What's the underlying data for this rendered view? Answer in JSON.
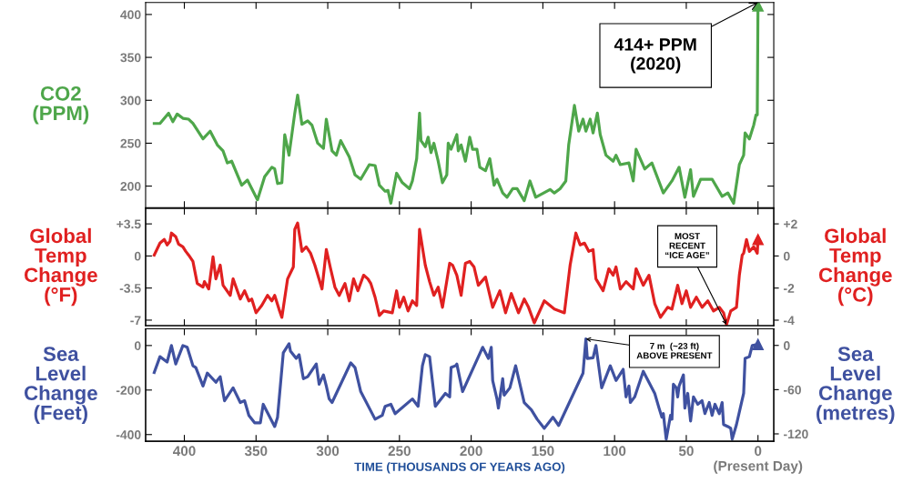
{
  "chart_data": [
    {
      "type": "line",
      "ylabel": "CO2\n(PPM)",
      "xlim": [
        427,
        -11
      ],
      "xticks": [
        400,
        350,
        300,
        250,
        200,
        150,
        100,
        50,
        0
      ],
      "ylim": [
        175,
        414
      ],
      "yticks": [
        200,
        250,
        300,
        350,
        400
      ],
      "tick_labels": "y",
      "annotations": [
        {
          "text": "414+ PPM\n(2020)",
          "x": 0,
          "y": 414
        }
      ],
      "series": [
        {
          "color": "#4ea64a",
          "x": [
            421,
            417,
            411,
            408,
            405,
            401,
            397,
            394,
            387,
            382,
            377,
            373,
            370,
            367,
            360,
            356,
            349,
            344,
            339,
            337,
            335,
            332,
            330,
            327,
            323,
            321,
            318,
            314,
            311,
            307,
            303,
            301,
            297,
            294,
            291,
            285,
            281,
            277,
            271,
            267,
            264,
            260,
            258,
            256,
            252,
            248,
            243,
            241,
            238,
            236,
            235,
            232,
            230,
            228,
            226,
            223,
            220,
            217,
            216,
            214,
            210,
            209,
            207,
            204,
            201,
            199,
            196,
            194,
            190,
            187,
            184,
            182,
            178,
            175,
            171,
            168,
            163,
            159,
            155,
            145,
            142,
            138,
            134,
            132,
            128,
            125,
            122,
            120,
            117,
            115,
            112,
            110,
            106,
            101,
            99,
            96,
            90,
            87,
            85,
            79,
            74,
            66,
            60,
            55,
            51,
            47,
            45,
            40,
            32,
            25,
            21,
            17,
            13,
            10,
            9,
            6,
            3,
            1.4,
            0.5,
            0
          ],
          "values": [
            273,
            273,
            285,
            275,
            284,
            279,
            278,
            273,
            255,
            264,
            248,
            241,
            227,
            229,
            201,
            207,
            184,
            211,
            222,
            220,
            203,
            204,
            260,
            236,
            285,
            306,
            272,
            276,
            271,
            250,
            244,
            278,
            241,
            236,
            253,
            234,
            213,
            208,
            225,
            224,
            201,
            194,
            195,
            180,
            215,
            204,
            197,
            206,
            232,
            285,
            253,
            246,
            257,
            239,
            250,
            229,
            204,
            213,
            250,
            243,
            260,
            241,
            248,
            229,
            257,
            243,
            243,
            222,
            218,
            232,
            201,
            208,
            192,
            187,
            197,
            197,
            183,
            206,
            187,
            196,
            192,
            197,
            206,
            248,
            294,
            264,
            278,
            264,
            278,
            262,
            285,
            260,
            236,
            229,
            236,
            225,
            227,
            206,
            243,
            220,
            227,
            192,
            206,
            222,
            187,
            219,
            188,
            208,
            208,
            188,
            192,
            180,
            225,
            236,
            262,
            255,
            271,
            283,
            283,
            410
          ]
        }
      ]
    },
    {
      "type": "line",
      "ylabel": "Global\nTemp\nChange\n(°F)",
      "y2label": "Global\nTemp\nChange\n(°C)",
      "xlim": [
        427,
        -11
      ],
      "xticks": [
        400,
        350,
        300,
        250,
        200,
        150,
        100,
        50,
        0
      ],
      "ylim": [
        -7.6,
        5.2
      ],
      "yticks": [
        {
          "value": 3.5,
          "label": "+3.5"
        },
        0,
        -3.5,
        -7
      ],
      "y2lim": [
        -4.34,
        2.97
      ],
      "y2ticks": [
        {
          "value": 2,
          "label": "+2"
        },
        0,
        -2,
        -4
      ],
      "tick_labels": "y",
      "annotations": [
        {
          "text": "MOST\nRECENT\n“ICE AGE”",
          "x": 22,
          "y": -7.5
        }
      ],
      "series": [
        {
          "color": "#e02020",
          "x": [
            421,
            417,
            414,
            412,
            410,
            409,
            406,
            404,
            401,
            399,
            397,
            394,
            391,
            387,
            386,
            383,
            380,
            378,
            375,
            373,
            368,
            366,
            361,
            358,
            355,
            353,
            350,
            346,
            342,
            339,
            337,
            334,
            332,
            328,
            324,
            323,
            321,
            318,
            315,
            312,
            309,
            304,
            301,
            298,
            295,
            292,
            288,
            285,
            282,
            279,
            275,
            272,
            270,
            267,
            264,
            261,
            255,
            252,
            250,
            247,
            244,
            241,
            238,
            236,
            232,
            229,
            226,
            223,
            220,
            215,
            213,
            210,
            207,
            204,
            201,
            198,
            195,
            190,
            185,
            180,
            176,
            172,
            167,
            163,
            160,
            156,
            149,
            142,
            135,
            131,
            127,
            124,
            121,
            118,
            115,
            113,
            108,
            104,
            101,
            99,
            96,
            92,
            87,
            85,
            80,
            76,
            72,
            68,
            63,
            60,
            56,
            53,
            50,
            47,
            43,
            39,
            35,
            31,
            27,
            24,
            22,
            19,
            15,
            13,
            11,
            10,
            8,
            6,
            3,
            0.5,
            0
          ],
          "values": [
            0.1,
            1.4,
            1.8,
            1.2,
            1.6,
            2.5,
            2.1,
            1.3,
            1.0,
            0.5,
            0.1,
            -0.6,
            -3.0,
            -3.4,
            -2.8,
            -3.6,
            -0.1,
            -2.5,
            -1.0,
            -3.2,
            -4.3,
            -2.5,
            -4.7,
            -3.8,
            -4.9,
            -4.7,
            -6.2,
            -5.4,
            -4.3,
            -4.9,
            -4.3,
            -5.8,
            -6.7,
            -2.5,
            -1.2,
            2.9,
            3.6,
            0.5,
            1.0,
            0.3,
            -1.0,
            -3.6,
            0.7,
            -1.4,
            -3.4,
            -4.3,
            -3.0,
            -4.9,
            -2.5,
            -3.8,
            -2.1,
            -2.5,
            -3.0,
            -4.5,
            -6.5,
            -6.0,
            -6.2,
            -3.8,
            -5.6,
            -4.5,
            -6.0,
            -4.9,
            -5.4,
            2.9,
            -1.0,
            -2.8,
            -4.3,
            -3.4,
            -5.6,
            -0.8,
            -1.0,
            -2.1,
            -4.3,
            -0.8,
            -0.6,
            -1.2,
            -3.2,
            -2.3,
            -5.6,
            -3.8,
            -6.2,
            -4.1,
            -6.2,
            -4.7,
            -5.6,
            -7.3,
            -4.9,
            -5.8,
            -6.2,
            -1.0,
            2.5,
            1.2,
            1.4,
            0.5,
            0.7,
            -2.5,
            -3.8,
            -1.4,
            -2.1,
            -1.2,
            -3.6,
            -2.8,
            -3.6,
            -1.4,
            -3.2,
            -2.1,
            -5.2,
            -6.7,
            -5.6,
            -5.8,
            -3.2,
            -5.2,
            -3.8,
            -5.6,
            -4.5,
            -5.6,
            -4.9,
            -6.0,
            -5.6,
            -6.2,
            -7.5,
            -6.0,
            -5.6,
            -2.1,
            0.1,
            0.3,
            1.8,
            0.5,
            1.0,
            0.3,
            1.8
          ]
        }
      ]
    },
    {
      "type": "line",
      "ylabel": "Sea\nLevel\nChange\n(Feet)",
      "y2label": "Sea\nLevel\nChange\n(metres)",
      "xlabel": "TIME (THOUSANDS OF YEARS AGO)",
      "xlim": [
        427,
        -11
      ],
      "xticks": [
        400,
        350,
        300,
        250,
        200,
        150,
        100,
        50,
        {
          "value": 0,
          "label": "0\n(Present Day)"
        }
      ],
      "ylim": [
        -430,
        75
      ],
      "yticks": [
        0,
        -200,
        -400
      ],
      "y2lim": [
        -130,
        22.5
      ],
      "y2ticks": [
        0,
        -60,
        -120
      ],
      "annotations": [
        {
          "text": "7 m  (~23 ft)\nABOVE PRESENT",
          "x": 120,
          "y": 30
        }
      ],
      "series": [
        {
          "color": "#3f51a0",
          "x": [
            421,
            417,
            412,
            409,
            406,
            401,
            398,
            394,
            392,
            387,
            384,
            378,
            375,
            372,
            366,
            361,
            358,
            355,
            351,
            347,
            345,
            337,
            335,
            331,
            327,
            326,
            322,
            320,
            317,
            314,
            308,
            306,
            303,
            301,
            299,
            297,
            284,
            281,
            277,
            267,
            262,
            260,
            256,
            253,
            241,
            237,
            234,
            232,
            229,
            225,
            218,
            215,
            214,
            211,
            210,
            206,
            192,
            188,
            186,
            185,
            182,
            181,
            178,
            177,
            173,
            169,
            163,
            158,
            154,
            149,
            143,
            139,
            122,
            120,
            119,
            115,
            113,
            109,
            103,
            99,
            94,
            92,
            90,
            89,
            86,
            80,
            72,
            69,
            67,
            66,
            64,
            61,
            60,
            59,
            57,
            56,
            55,
            52,
            51,
            49,
            47,
            45,
            42,
            39,
            37,
            34,
            32,
            30,
            27,
            25,
            24,
            21,
            19,
            18,
            15,
            10,
            9,
            6,
            4,
            0
          ],
          "values": [
            -121,
            -50,
            -74,
            0,
            -83,
            0,
            -8,
            -91,
            -99,
            -182,
            -124,
            -165,
            -140,
            -248,
            -190,
            -256,
            -248,
            -314,
            -347,
            -347,
            -264,
            -364,
            -322,
            -33,
            8,
            -25,
            -58,
            -41,
            -149,
            -140,
            -83,
            -174,
            -132,
            -182,
            -240,
            -256,
            -78,
            -99,
            -207,
            -331,
            -314,
            -273,
            -264,
            -306,
            -240,
            -273,
            -91,
            -41,
            -50,
            -273,
            -215,
            -231,
            -99,
            -91,
            -83,
            -207,
            -8,
            -58,
            -8,
            -157,
            -240,
            -281,
            -149,
            -223,
            -190,
            -91,
            -256,
            -289,
            -331,
            -372,
            -322,
            -359,
            -124,
            30,
            -58,
            -55,
            0,
            -190,
            -91,
            -157,
            -107,
            -231,
            -182,
            -256,
            -231,
            -116,
            -215,
            -281,
            -322,
            -306,
            -421,
            -314,
            -331,
            -174,
            -190,
            -231,
            -182,
            -132,
            -281,
            -215,
            -339,
            -231,
            -264,
            -248,
            -306,
            -256,
            -314,
            -264,
            -306,
            -256,
            -355,
            -364,
            -372,
            -421,
            -355,
            -215,
            -58,
            -50,
            0,
            5
          ]
        }
      ]
    }
  ]
}
